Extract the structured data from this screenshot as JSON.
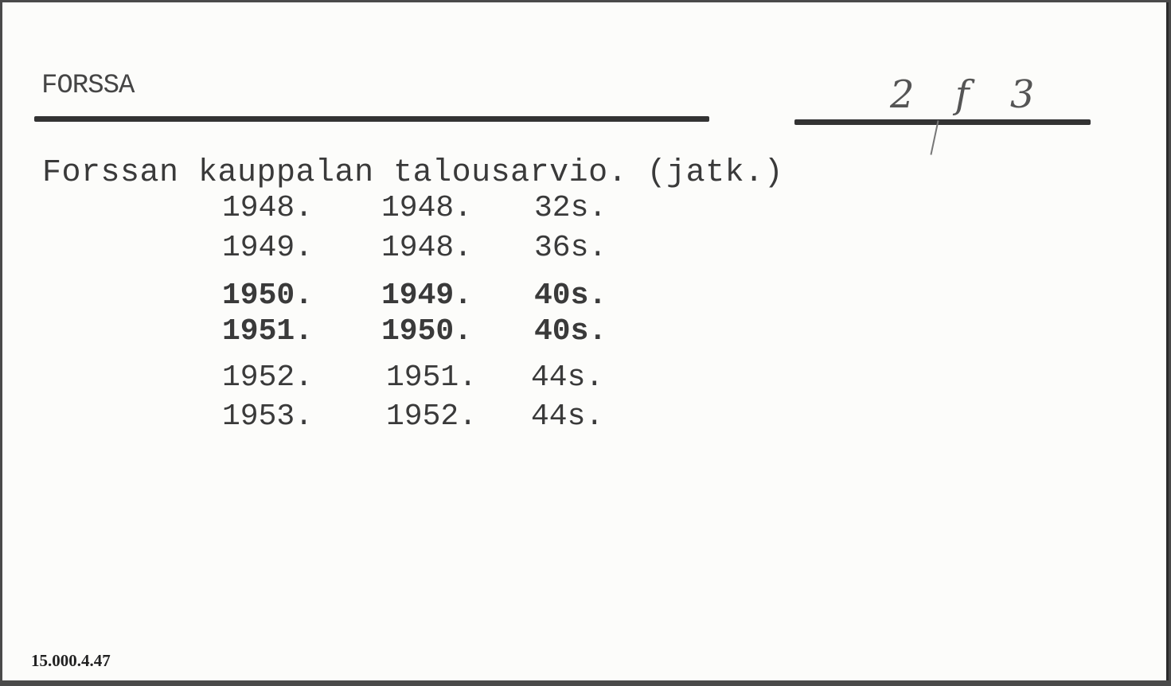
{
  "card": {
    "heading": "FORSSA",
    "handwritten_number": "2 f 3",
    "title": "Forssan kauppalan talousarvio. (jatk.)",
    "entries": [
      {
        "year": "1948.",
        "published": "1948.",
        "pages": "32s."
      },
      {
        "year": "1949.",
        "published": "1948.",
        "pages": "36s."
      },
      {
        "year": "1950.",
        "published": "1949.",
        "pages": "40s."
      },
      {
        "year": "1951.",
        "published": "1950.",
        "pages": "40s."
      },
      {
        "year": "1952.",
        "published": "1951.",
        "pages": "44s."
      },
      {
        "year": "1953.",
        "published": "1952.",
        "pages": "44s."
      }
    ],
    "footer_code": "15.000.4.47"
  }
}
